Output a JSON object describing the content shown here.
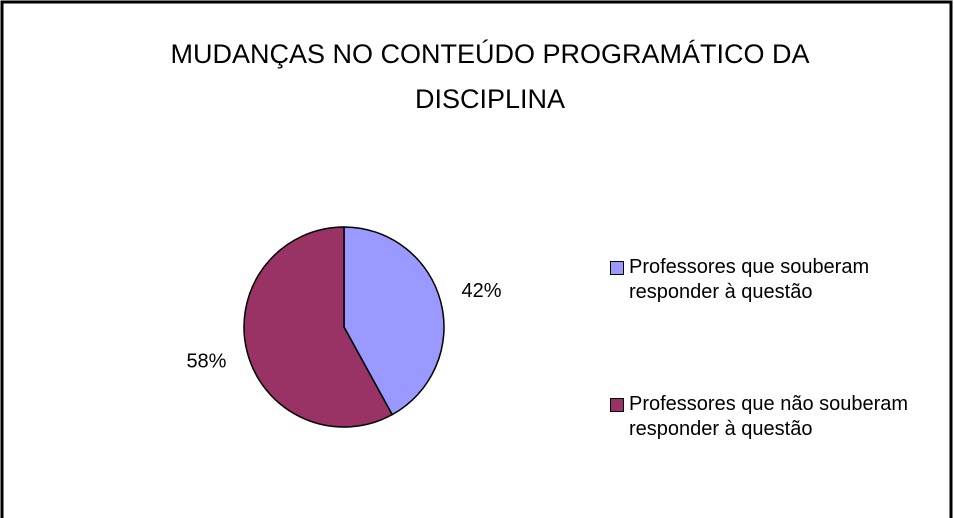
{
  "chart_data": {
    "type": "pie",
    "title": "MUDANÇAS NO CONTEÚDO PROGRAMÁTICO DA DISCIPLINA",
    "categories": [
      "Professores que souberam responder à questão",
      "Professores que não souberam responder à questão"
    ],
    "values": [
      42,
      58
    ],
    "value_labels": [
      "42%",
      "58%"
    ],
    "colors": [
      "#9999ff",
      "#993366"
    ],
    "legend": "right"
  }
}
